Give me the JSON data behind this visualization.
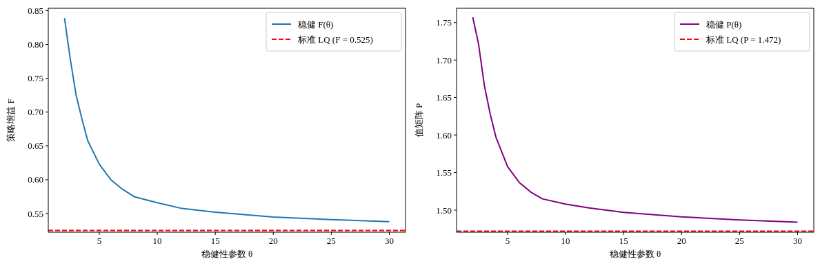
{
  "chart_data": [
    {
      "type": "line",
      "xlabel": "稳健性参数 θ",
      "ylabel": "策略增益 F",
      "xlim": [
        0.6,
        31.4
      ],
      "ylim": [
        0.5225,
        0.8535
      ],
      "xticks": [
        5,
        10,
        15,
        20,
        25,
        30
      ],
      "yticks": [
        {
          "value": 0.55,
          "label": "0.55"
        },
        {
          "value": 0.6,
          "label": "0.60"
        },
        {
          "value": 0.65,
          "label": "0.65"
        },
        {
          "value": 0.7,
          "label": "0.70"
        },
        {
          "value": 0.75,
          "label": "0.75"
        },
        {
          "value": 0.8,
          "label": "0.80"
        },
        {
          "value": 0.85,
          "label": "0.85"
        }
      ],
      "legend": "top right",
      "grid": false,
      "line_style": "solid",
      "series": [
        {
          "name": "稳健 F(θ)",
          "color": "#1f77b4",
          "x": [
            2,
            2.5,
            3,
            3.5,
            4,
            5,
            6,
            7,
            8,
            10,
            12,
            15,
            20,
            25,
            30
          ],
          "values": [
            0.839,
            0.778,
            0.725,
            0.69,
            0.658,
            0.623,
            0.6,
            0.586,
            0.575,
            0.566,
            0.558,
            0.552,
            0.545,
            0.541,
            0.538
          ]
        }
      ],
      "ref_lines": [
        {
          "axis": "y",
          "value": 0.525,
          "label": "标准 LQ (F = 0.525)",
          "color": "#ff0000",
          "line_style": "dashed"
        }
      ]
    },
    {
      "type": "line",
      "xlabel": "稳健性参数 θ",
      "ylabel": "值矩阵 P",
      "xlim": [
        0.6,
        31.4
      ],
      "ylim": [
        1.4706,
        1.769
      ],
      "xticks": [
        5,
        10,
        15,
        20,
        25,
        30
      ],
      "yticks": [
        {
          "value": 1.5,
          "label": "1.50"
        },
        {
          "value": 1.55,
          "label": "1.55"
        },
        {
          "value": 1.6,
          "label": "1.60"
        },
        {
          "value": 1.65,
          "label": "1.65"
        },
        {
          "value": 1.7,
          "label": "1.70"
        },
        {
          "value": 1.75,
          "label": "1.75"
        }
      ],
      "legend": "top right",
      "grid": false,
      "line_style": "solid",
      "series": [
        {
          "name": "稳健 P(θ)",
          "color": "#800080",
          "x": [
            2,
            2.5,
            3,
            3.5,
            4,
            5,
            6,
            7,
            8,
            10,
            12,
            15,
            20,
            25,
            30
          ],
          "values": [
            1.757,
            1.721,
            1.666,
            1.628,
            1.597,
            1.558,
            1.537,
            1.524,
            1.515,
            1.508,
            1.503,
            1.497,
            1.491,
            1.487,
            1.484
          ]
        }
      ],
      "ref_lines": [
        {
          "axis": "y",
          "value": 1.472,
          "label": "标准 LQ (P = 1.472)",
          "color": "#ff0000",
          "line_style": "dashed"
        }
      ]
    }
  ]
}
